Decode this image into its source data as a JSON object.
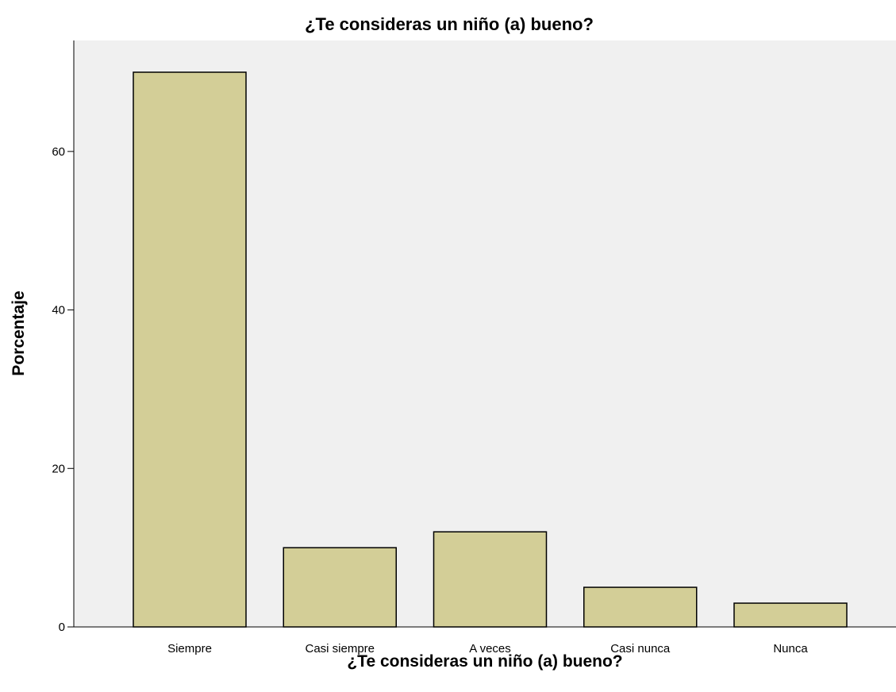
{
  "colors": {
    "plot_background": "#f0f0f0",
    "bar_fill": "#d3ce97",
    "bar_stroke": "#000000",
    "axis": "#000000"
  },
  "chart_data": {
    "type": "bar",
    "title": "¿Te consideras un niño (a) bueno?",
    "xlabel": "¿Te consideras un niño (a) bueno?",
    "ylabel": "Porcentaje",
    "categories": [
      "Siempre",
      "Casi siempre",
      "A veces",
      "Casi nunca",
      "Nunca"
    ],
    "values": [
      70,
      10,
      12,
      5,
      3
    ],
    "ylim": [
      0,
      70.2
    ],
    "yticks": [
      0,
      20,
      40,
      60
    ],
    "ytick_labels": [
      "0",
      "20",
      "40",
      "60"
    ],
    "grid": false,
    "legend": "none"
  }
}
